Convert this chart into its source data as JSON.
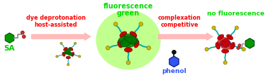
{
  "bg_color": "#ffffff",
  "label_SA": "SA",
  "label_SA_color": "#00cc00",
  "label_host_line1": "host-assisted",
  "label_host_line2": "dye deprotonation",
  "label_host_color": "#ff0000",
  "label_green_fluor_line1": "green",
  "label_green_fluor_line2": "fluorescence",
  "label_green_fluor_color": "#00dd00",
  "label_phenol": "phenol",
  "label_phenol_color": "#3355ff",
  "label_competitive_line1": "competitive",
  "label_competitive_line2": "complexation",
  "label_competitive_color": "#ff0000",
  "label_no_fluor": "no fluorescence",
  "label_no_fluor_color": "#00dd00",
  "arrow1_color": "#ffbbbb",
  "arrow2_color": "#ffbbbb",
  "green_glow_color": "#99ff44",
  "pillar_color": "#cc0000",
  "dye_color": "#007700",
  "blue_guest_color": "#3355ee",
  "yellow_ball_color": "#ccbb00",
  "teal_line_color": "#00aaaa",
  "sa_hex_color": "#009900",
  "sa_chain_color": "#888888",
  "sa_dot1_color": "#cc3333",
  "sa_dot2_color": "#cc3333"
}
